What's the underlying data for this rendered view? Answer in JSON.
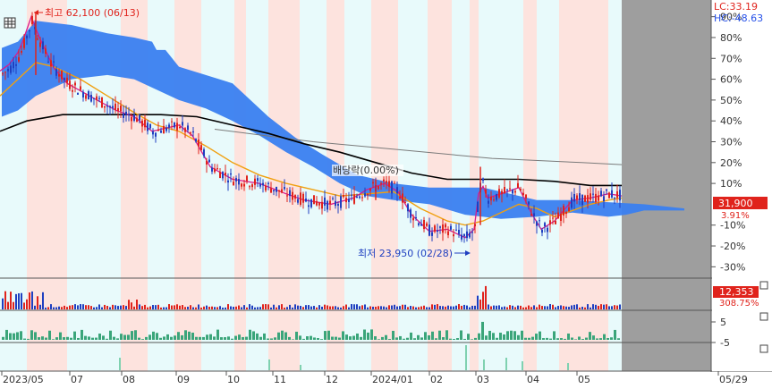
{
  "chart_data": [
    {
      "type": "candlestick",
      "panel": "price",
      "y_axis": {
        "unit": "% (relative to reference)",
        "ticks": [
          "90%",
          "80%",
          "70%",
          "60%",
          "50%",
          "40%",
          "30%",
          "20%",
          "10%",
          "-10%",
          "-20%",
          "-30%"
        ],
        "ylim": [
          -35,
          95
        ]
      },
      "x_axis": {
        "ticks": [
          "2023/05",
          "07",
          "08",
          "09",
          "10",
          "11",
          "12",
          "2024/01",
          "02",
          "03",
          "04",
          "05",
          "05/29"
        ]
      },
      "top_right_labels": [
        {
          "text": "LC:33.19",
          "color": "#e0231c"
        },
        {
          "text": "HC:-48.63",
          "color": "#2550e8"
        }
      ],
      "current_price_label": "31,900",
      "current_change_label": "3.91%",
      "annotations": [
        {
          "text": "최고 62,100 (06/13)",
          "kind": "high"
        },
        {
          "text": "최저 23,950 (02/28)",
          "kind": "low"
        },
        {
          "text": "배당락(0.00%)",
          "kind": "dividend"
        }
      ],
      "series": [
        {
          "kind": "ichimoku-cloud",
          "color": "#3a7ff0"
        },
        {
          "kind": "moving-average",
          "color": "#d81b8c"
        },
        {
          "kind": "moving-average",
          "color": "#f0a010"
        },
        {
          "kind": "moving-average",
          "color": "#000000"
        },
        {
          "kind": "moving-average",
          "color": "#7a7a7a"
        }
      ],
      "candle_colors": {
        "up": "#e0231c",
        "down": "#1f3fc0"
      }
    },
    {
      "type": "bar",
      "panel": "volume",
      "value_label": "12,353",
      "change_label": "308.75%",
      "bar_colors": {
        "up": "#e0231c",
        "down": "#1f3fc0"
      }
    },
    {
      "type": "bar",
      "panel": "indicator-1",
      "y_axis": {
        "ticks": [
          "5",
          "-5"
        ]
      },
      "bar_color": "#3aa57a"
    },
    {
      "type": "bar",
      "panel": "indicator-2",
      "bar_color": "#7fd1b0"
    }
  ],
  "colors": {
    "background_a": "#e8fafb",
    "background_b": "#fde3de",
    "future_area": "#9e9e9e"
  },
  "icons": {
    "top_left": "grid-icon"
  }
}
